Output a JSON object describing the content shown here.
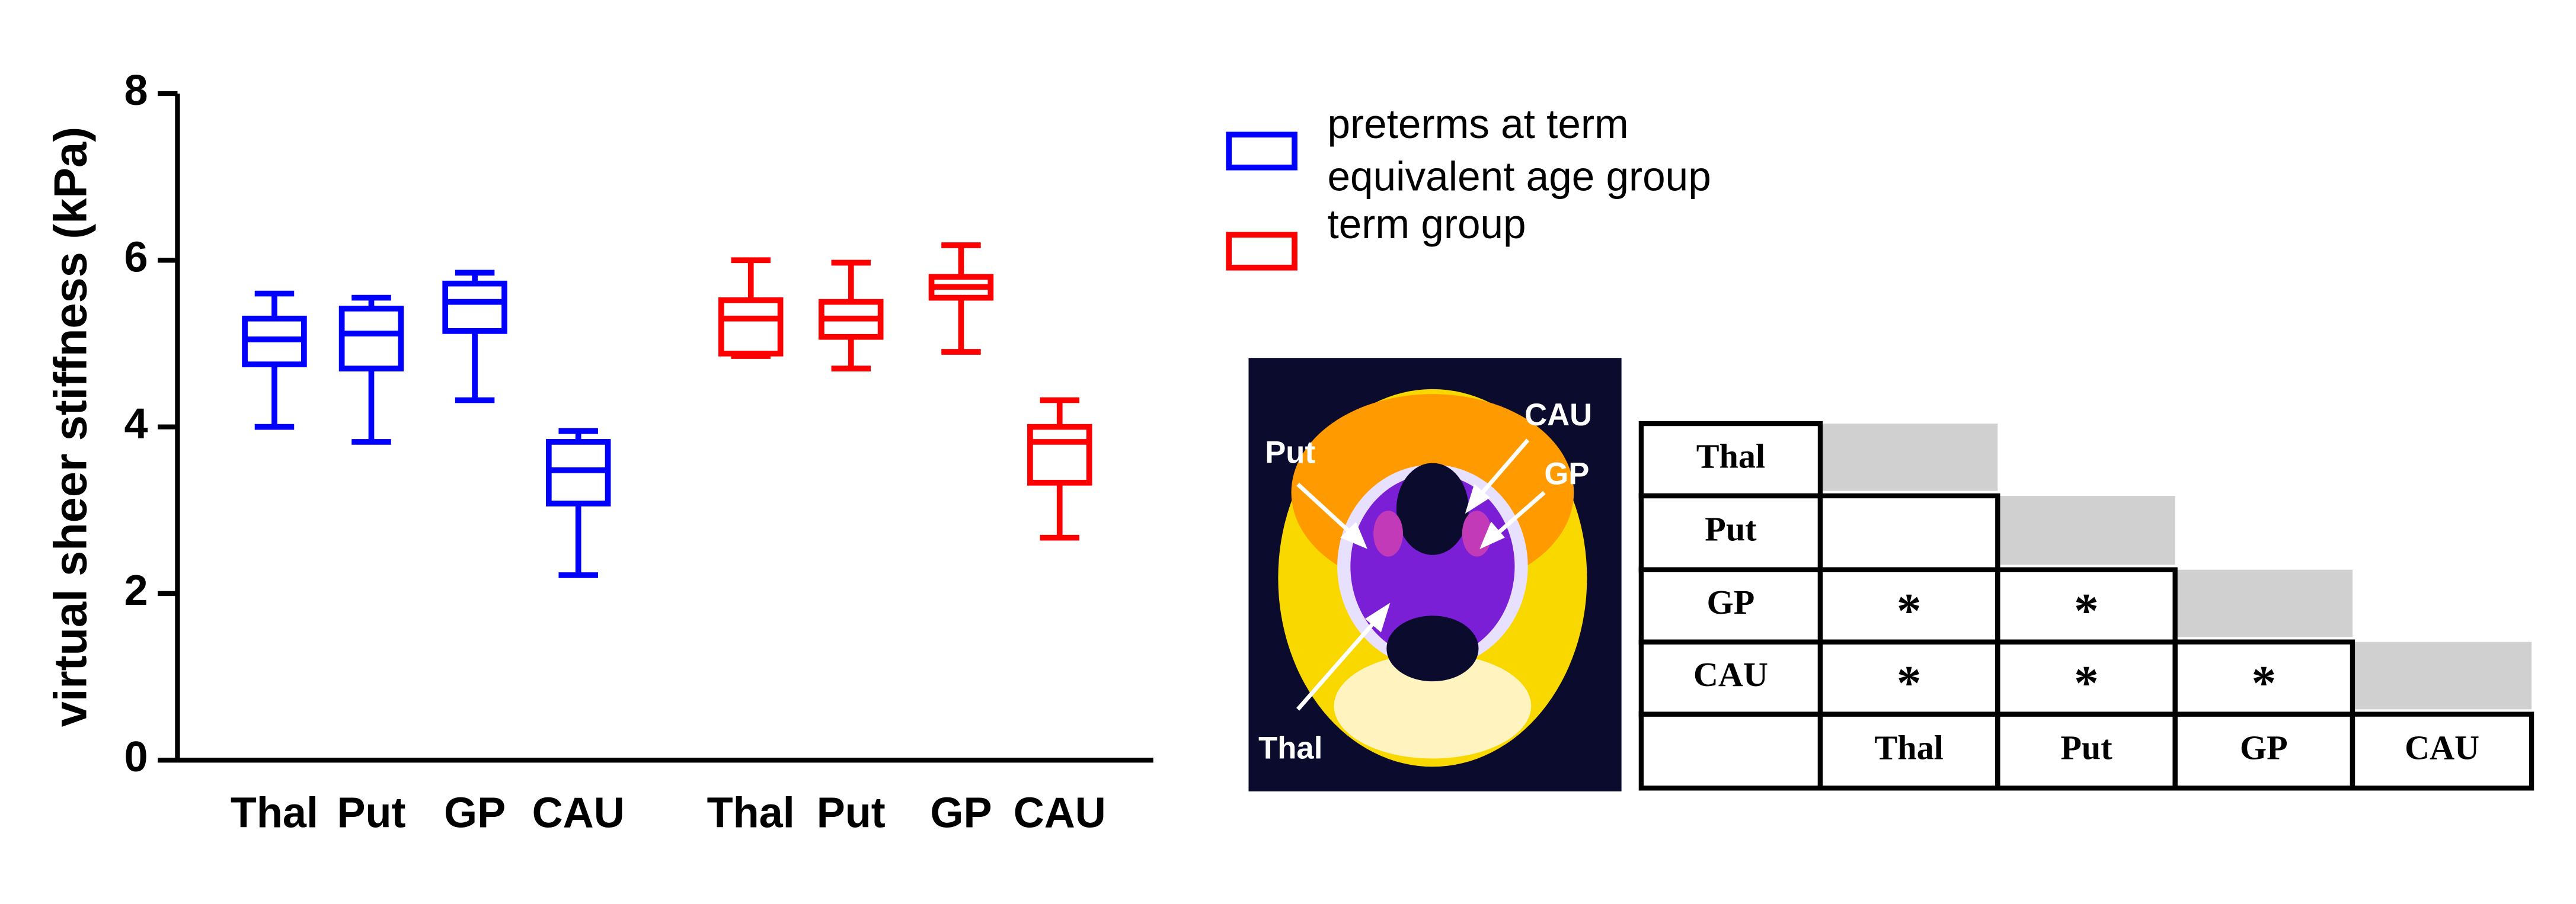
{
  "chart_data": {
    "type": "box",
    "ylabel": "virtual sheer stiffness (kPa)",
    "ylim": [
      0,
      8
    ],
    "yticks": [
      0,
      2,
      4,
      6,
      8
    ],
    "series": [
      {
        "name": "preterms at term equivalent age group",
        "color": "#0000ff",
        "categories": [
          "Thal",
          "Put",
          "GP",
          "CAU"
        ],
        "boxes": [
          {
            "min": 4.0,
            "q1": 4.75,
            "median": 5.05,
            "q3": 5.3,
            "max": 5.6
          },
          {
            "min": 3.82,
            "q1": 4.7,
            "median": 5.12,
            "q3": 5.42,
            "max": 5.55
          },
          {
            "min": 4.32,
            "q1": 5.15,
            "median": 5.5,
            "q3": 5.72,
            "max": 5.85
          },
          {
            "min": 2.22,
            "q1": 3.08,
            "median": 3.48,
            "q3": 3.82,
            "max": 3.95
          }
        ]
      },
      {
        "name": "term group",
        "color": "#ff0000",
        "categories": [
          "Thal",
          "Put",
          "GP",
          "CAU"
        ],
        "boxes": [
          {
            "min": 4.85,
            "q1": 4.88,
            "median": 5.3,
            "q3": 5.52,
            "max": 6.0
          },
          {
            "min": 4.7,
            "q1": 5.08,
            "median": 5.3,
            "q3": 5.5,
            "max": 5.97
          },
          {
            "min": 4.9,
            "q1": 5.55,
            "median": 5.68,
            "q3": 5.8,
            "max": 6.18
          },
          {
            "min": 2.67,
            "q1": 3.33,
            "median": 3.82,
            "q3": 4.0,
            "max": 4.32
          }
        ]
      }
    ]
  },
  "image": {
    "labels": [
      "Put",
      "CAU",
      "GP",
      "Thal"
    ]
  },
  "table": {
    "row_labels": [
      "Thal",
      "Put",
      "GP",
      "CAU"
    ],
    "column_labels": [
      "Thal",
      "Put",
      "GP",
      "CAU"
    ],
    "cells": [
      [],
      [
        null
      ],
      [
        "*",
        "*"
      ],
      [
        "*",
        "*",
        "*"
      ]
    ]
  }
}
